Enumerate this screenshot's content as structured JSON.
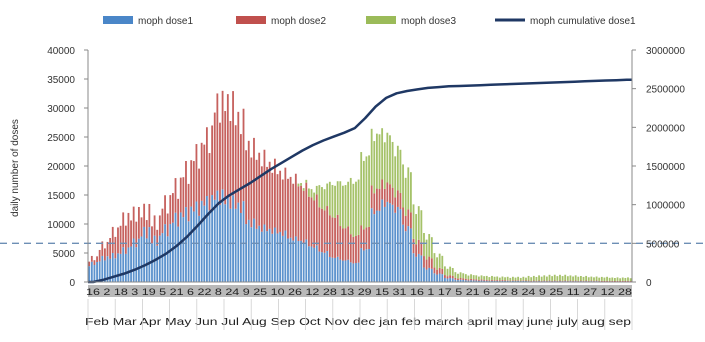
{
  "chart_data": {
    "type": "bar",
    "title": "",
    "ylabel": "daily number of doses",
    "y2label": "",
    "ylim": [
      0,
      40000
    ],
    "y2lim": [
      0,
      3000000
    ],
    "y_ticks": [
      "0",
      "5000",
      "10000",
      "15000",
      "20000",
      "25000",
      "30000",
      "35000",
      "40000"
    ],
    "y2_ticks": [
      "0",
      "500000",
      "1000000",
      "1500000",
      "2000000",
      "2500000",
      "3000000"
    ],
    "grid": false,
    "legend_position": "top",
    "series": [
      {
        "name": "moph dose1",
        "color": "#4a86c8"
      },
      {
        "name": "moph dose2",
        "color": "#c0504d"
      },
      {
        "name": "moph dose3",
        "color": "#9bbb59"
      },
      {
        "name": "moph cumulative dose1",
        "color": "#1f3864",
        "type": "line",
        "axis": "right"
      }
    ],
    "x_days": "16 2 18 3 19 5 21 6 22 8 24 9 25 10 26 12 28 13 29 15 31 16 1 17 5 21 6 22 8 24 9 25 11 27 12 28",
    "x_months": [
      "Feb",
      "Mar",
      "Apr",
      "May",
      "Jun",
      "Jul",
      "Aug",
      "Sep",
      "Oct",
      "Nov",
      "dec",
      "jan",
      "feb",
      "march",
      "april",
      "may",
      "june",
      "july",
      "aug",
      "sep"
    ],
    "weeks": {
      "dose1": [
        3500,
        4500,
        5000,
        6000,
        7500,
        9500,
        8000,
        10000,
        12000,
        13000,
        14000,
        15000,
        16000,
        15000,
        14000,
        11000,
        10000,
        9500,
        9000,
        8000,
        7500,
        6500,
        5500,
        4500,
        4000,
        3500,
        6000,
        13000,
        14500,
        13500,
        10000,
        5000,
        2500,
        1500,
        700,
        400,
        300,
        250,
        200,
        200,
        200,
        200,
        150,
        150,
        150,
        150,
        150,
        150,
        150,
        100,
        100,
        100
      ],
      "dose2": [
        1000,
        2500,
        4500,
        6000,
        5500,
        4000,
        3500,
        5000,
        6000,
        8000,
        10000,
        12000,
        17000,
        18000,
        16000,
        14000,
        13000,
        12000,
        11000,
        11000,
        10000,
        9000,
        8000,
        7500,
        6000,
        5000,
        4000,
        4000,
        3500,
        3000,
        3000,
        2500,
        2000,
        1000,
        500,
        300,
        250,
        200,
        150,
        150,
        100,
        100,
        100,
        100,
        100,
        100,
        100,
        100,
        100,
        100,
        100,
        100
      ],
      "dose3": [
        0,
        0,
        0,
        0,
        0,
        0,
        0,
        0,
        0,
        0,
        0,
        0,
        0,
        0,
        0,
        0,
        0,
        0,
        0,
        0,
        500,
        1500,
        4000,
        6000,
        8000,
        10000,
        13000,
        10000,
        9000,
        8000,
        7500,
        6000,
        4000,
        2500,
        1500,
        1000,
        800,
        700,
        700,
        600,
        600,
        600,
        800,
        900,
        1000,
        1000,
        900,
        800,
        700,
        700,
        600,
        600
      ],
      "cumulative": [
        0,
        30000,
        70000,
        110000,
        160000,
        220000,
        290000,
        370000,
        470000,
        590000,
        730000,
        880000,
        1020000,
        1120000,
        1200000,
        1280000,
        1370000,
        1460000,
        1540000,
        1620000,
        1700000,
        1770000,
        1830000,
        1880000,
        1930000,
        1990000,
        2120000,
        2270000,
        2380000,
        2440000,
        2470000,
        2490000,
        2510000,
        2520000,
        2530000,
        2535000,
        2540000,
        2545000,
        2550000,
        2555000,
        2560000,
        2565000,
        2570000,
        2575000,
        2580000,
        2585000,
        2590000,
        2595000,
        2600000,
        2605000,
        2610000,
        2615000
      ]
    }
  }
}
